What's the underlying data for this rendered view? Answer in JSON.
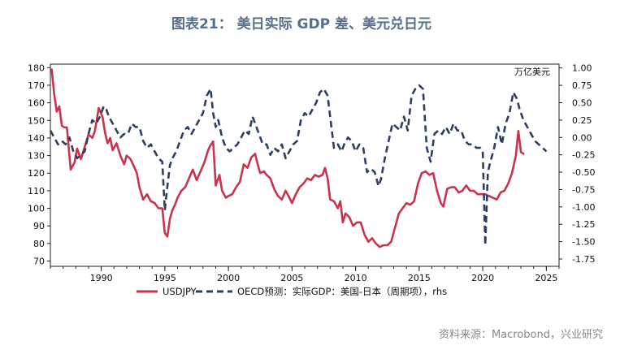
{
  "title": "图表21： 美日实际 GDP 差、美元兑日元",
  "source": "资料来源：Macrobond，兴业研究",
  "chart_data": {
    "type": "line",
    "title": "图表21： 美日实际 GDP 差、美元兑日元",
    "xlim": [
      1986,
      2026
    ],
    "x_ticks": [
      1990,
      1995,
      2000,
      2005,
      2010,
      2015,
      2020,
      2025
    ],
    "left_axis": {
      "ylim": [
        67,
        182
      ],
      "ticks": [
        70,
        80,
        90,
        100,
        110,
        120,
        130,
        140,
        150,
        160,
        170,
        180
      ]
    },
    "right_axis": {
      "unit_label": "万亿美元",
      "ylim": [
        -1.855,
        1.055
      ],
      "ticks": [
        1.0,
        0.75,
        0.5,
        0.25,
        0.0,
        -0.25,
        -0.5,
        -0.75,
        -1.0,
        -1.25,
        -1.5,
        -1.75
      ],
      "tick_labels": [
        "1.00",
        "0.75",
        "0.50",
        "0.25",
        "0.00",
        "-0.25",
        "-0.50",
        "-0.75",
        "-1.00",
        "-1.25",
        "-1.50",
        "-1.75"
      ]
    },
    "legend_placement": "bottom",
    "series": [
      {
        "name": "USDJPY",
        "axis": "left",
        "color": "#c8334e",
        "style": "solid",
        "x": [
          1986.1,
          1986.3,
          1986.5,
          1986.7,
          1986.9,
          1987.1,
          1987.3,
          1987.6,
          1987.9,
          1988.1,
          1988.4,
          1988.7,
          1989.0,
          1989.3,
          1989.5,
          1989.8,
          1990.1,
          1990.3,
          1990.5,
          1990.7,
          1990.9,
          1991.2,
          1991.5,
          1991.8,
          1992.0,
          1992.3,
          1992.5,
          1992.8,
          1993.0,
          1993.3,
          1993.6,
          1993.9,
          1994.2,
          1994.5,
          1994.8,
          1995.0,
          1995.2,
          1995.4,
          1995.6,
          1995.8,
          1996.0,
          1996.3,
          1996.6,
          1996.9,
          1997.2,
          1997.5,
          1997.8,
          1998.1,
          1998.4,
          1998.6,
          1998.8,
          1999.0,
          1999.3,
          1999.5,
          1999.8,
          2000.0,
          2000.3,
          2000.6,
          2000.9,
          2001.2,
          2001.5,
          2001.8,
          2002.1,
          2002.3,
          2002.5,
          2002.8,
          2003.0,
          2003.3,
          2003.6,
          2003.9,
          2004.2,
          2004.5,
          2004.8,
          2005.0,
          2005.3,
          2005.6,
          2005.9,
          2006.2,
          2006.5,
          2006.8,
          2007.1,
          2007.4,
          2007.6,
          2007.8,
          2008.0,
          2008.3,
          2008.6,
          2008.8,
          2009.0,
          2009.2,
          2009.5,
          2009.8,
          2010.1,
          2010.4,
          2010.7,
          2011.0,
          2011.3,
          2011.6,
          2011.9,
          2012.2,
          2012.5,
          2012.8,
          2013.1,
          2013.4,
          2013.7,
          2014.0,
          2014.3,
          2014.6,
          2014.9,
          2015.2,
          2015.5,
          2015.8,
          2016.1,
          2016.4,
          2016.7,
          2016.9,
          2017.2,
          2017.5,
          2017.8,
          2018.1,
          2018.4,
          2018.7,
          2019.0,
          2019.3,
          2019.6,
          2019.9,
          2020.2,
          2020.5,
          2020.8,
          2021.1,
          2021.4,
          2021.7,
          2022.0,
          2022.3,
          2022.6,
          2022.8,
          2023.0,
          2023.2
        ],
        "values": [
          179,
          165,
          155,
          158,
          147,
          146,
          146,
          122,
          126,
          134,
          128,
          135,
          142,
          140,
          144,
          157,
          152,
          143,
          137,
          140,
          133,
          137,
          130,
          125,
          130,
          128,
          125,
          120,
          112,
          105,
          108,
          104,
          103,
          100,
          100,
          86,
          84,
          94,
          99,
          102,
          106,
          110,
          112,
          117,
          122,
          116,
          121,
          126,
          133,
          136,
          138,
          113,
          119,
          110,
          106,
          107,
          108,
          112,
          115,
          125,
          123,
          129,
          131,
          125,
          120,
          121,
          119,
          117,
          111,
          107,
          105,
          110,
          106,
          103,
          108,
          112,
          114,
          117,
          116,
          119,
          118,
          119,
          123,
          117,
          105,
          104,
          100,
          104,
          92,
          97,
          95,
          90,
          92,
          92,
          85,
          81,
          83,
          80,
          78,
          79,
          79,
          81,
          89,
          97,
          100,
          103,
          102,
          104,
          114,
          120,
          121,
          119,
          120,
          110,
          103,
          101,
          111,
          112,
          112,
          109,
          110,
          113,
          110,
          110,
          108,
          108,
          108,
          107,
          106,
          105,
          109,
          110,
          114,
          120,
          130,
          144,
          132,
          131
        ],
        "note": "values read approximately from the chart"
      },
      {
        "name": "OECD预测：实际GDP：美国-日本（周期项）, rhs",
        "axis": "right",
        "color": "#2e3f5e",
        "style": "dashed",
        "x": [
          1986.0,
          1986.3,
          1986.6,
          1986.9,
          1987.2,
          1987.5,
          1987.8,
          1988.1,
          1988.4,
          1988.7,
          1989.0,
          1989.3,
          1989.6,
          1989.9,
          1990.2,
          1990.4,
          1990.6,
          1990.9,
          1991.2,
          1991.5,
          1991.8,
          1992.1,
          1992.4,
          1992.7,
          1993.0,
          1993.3,
          1993.6,
          1993.9,
          1994.2,
          1994.5,
          1994.8,
          1995.0,
          1995.2,
          1995.4,
          1995.6,
          1995.9,
          1996.2,
          1996.5,
          1996.8,
          1997.1,
          1997.4,
          1997.7,
          1998.0,
          1998.3,
          1998.6,
          1998.8,
          1999.0,
          1999.2,
          1999.5,
          1999.8,
          2000.1,
          2000.4,
          2000.7,
          2001.0,
          2001.3,
          2001.6,
          2001.9,
          2002.1,
          2002.4,
          2002.7,
          2003.0,
          2003.3,
          2003.6,
          2003.9,
          2004.2,
          2004.5,
          2004.8,
          2005.1,
          2005.4,
          2005.7,
          2006.0,
          2006.3,
          2006.6,
          2006.9,
          2007.2,
          2007.5,
          2007.8,
          2008.0,
          2008.3,
          2008.6,
          2008.9,
          2009.1,
          2009.4,
          2009.7,
          2010.0,
          2010.3,
          2010.6,
          2010.9,
          2011.2,
          2011.5,
          2011.8,
          2012.0,
          2012.3,
          2012.6,
          2012.9,
          2013.2,
          2013.5,
          2013.8,
          2014.1,
          2014.4,
          2014.7,
          2015.0,
          2015.3,
          2015.6,
          2015.9,
          2016.2,
          2016.5,
          2016.8,
          2017.1,
          2017.4,
          2017.7,
          2018.0,
          2018.3,
          2018.6,
          2018.9,
          2019.2,
          2019.5,
          2019.8,
          2020.0,
          2020.2,
          2020.4,
          2020.6,
          2020.9,
          2021.2,
          2021.5,
          2021.8,
          2022.1,
          2022.4,
          2022.7,
          2022.9,
          2023.2,
          2023.5,
          2023.8,
          2024.1,
          2024.4,
          2024.7,
          2025.0
        ],
        "values": [
          0.1,
          0.0,
          -0.1,
          -0.05,
          -0.1,
          0.0,
          -0.2,
          -0.3,
          -0.25,
          -0.2,
          0.05,
          0.25,
          0.2,
          0.3,
          0.45,
          0.4,
          0.3,
          0.2,
          0.1,
          0.0,
          0.05,
          0.05,
          0.2,
          0.15,
          0.15,
          -0.05,
          -0.15,
          -0.1,
          -0.2,
          -0.3,
          -0.35,
          -1.05,
          -0.7,
          -0.4,
          -0.3,
          -0.2,
          -0.05,
          0.1,
          0.15,
          0.05,
          0.15,
          0.25,
          0.35,
          0.6,
          0.7,
          0.35,
          0.15,
          0.25,
          0.0,
          -0.15,
          -0.2,
          -0.15,
          -0.1,
          0.0,
          0.1,
          0.05,
          0.3,
          0.2,
          0.05,
          -0.1,
          -0.1,
          -0.25,
          -0.15,
          -0.2,
          -0.1,
          -0.3,
          -0.2,
          -0.1,
          -0.05,
          0.25,
          0.35,
          0.3,
          0.4,
          0.5,
          0.65,
          0.7,
          0.6,
          0.3,
          -0.15,
          -0.1,
          -0.2,
          -0.1,
          0.0,
          -0.05,
          -0.2,
          -0.1,
          -0.15,
          -0.5,
          -0.45,
          -0.5,
          -0.7,
          -0.6,
          -0.3,
          -0.05,
          0.2,
          0.15,
          0.1,
          0.3,
          0.1,
          0.6,
          0.7,
          0.75,
          0.7,
          -0.15,
          -0.35,
          0.05,
          0.1,
          0.05,
          0.15,
          0.05,
          0.2,
          0.1,
          0.1,
          -0.05,
          -0.1,
          -0.1,
          -0.15,
          -0.15,
          -0.2,
          -1.55,
          -0.5,
          -0.35,
          -0.15,
          0.15,
          -0.1,
          0.2,
          0.35,
          0.65,
          0.55,
          0.4,
          0.25,
          0.15,
          0.05,
          -0.05,
          -0.1,
          -0.15,
          -0.2
        ]
      }
    ]
  },
  "legend": [
    {
      "label": "USDJPY",
      "color": "#c8334e",
      "style": "solid"
    },
    {
      "label": "OECD预测：实际GDP：美国-日本（周期项），rhs",
      "color": "#2e3f5e",
      "style": "dashed"
    }
  ]
}
